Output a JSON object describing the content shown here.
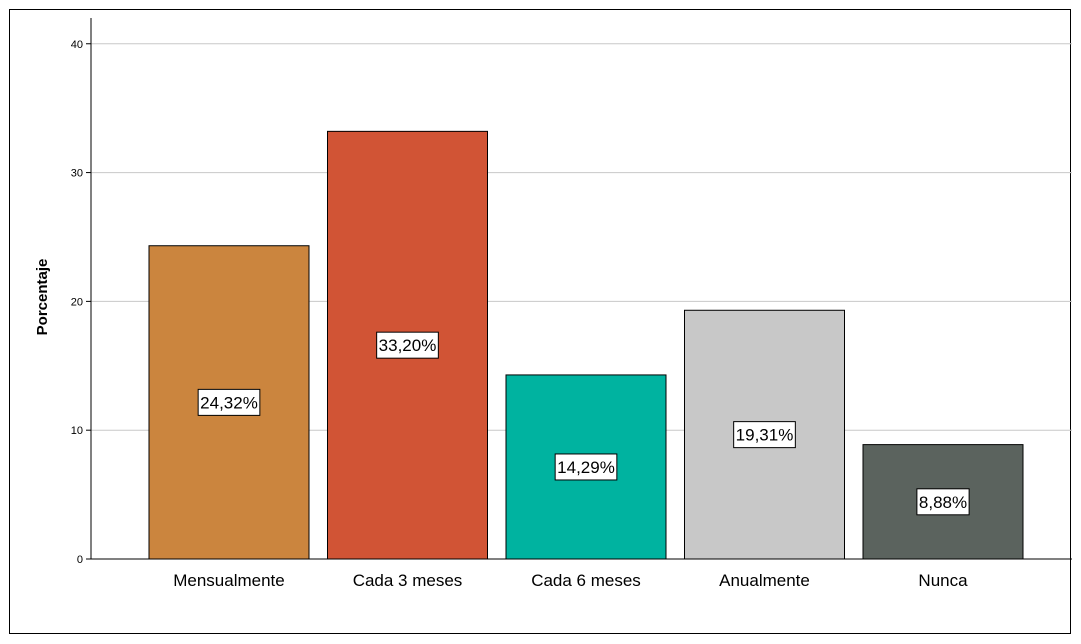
{
  "chart_data": {
    "type": "bar",
    "title": "",
    "xlabel": "",
    "ylabel": "Porcentaje",
    "ylim": [
      0,
      42
    ],
    "yticks": [
      0,
      10,
      20,
      30,
      40
    ],
    "grid": true,
    "categories": [
      "Mensualmente",
      "Cada 3 meses",
      "Cada 6 meses",
      "Anualmente",
      "Nunca"
    ],
    "values": [
      24.32,
      33.2,
      14.29,
      19.31,
      8.88
    ],
    "data_labels": [
      "24,32%",
      "33,20%",
      "14,29%",
      "19,31%",
      "8,88%"
    ],
    "colors": [
      "#CB853E",
      "#D15435",
      "#00B3A0",
      "#C8C8C8",
      "#5B635E"
    ]
  }
}
